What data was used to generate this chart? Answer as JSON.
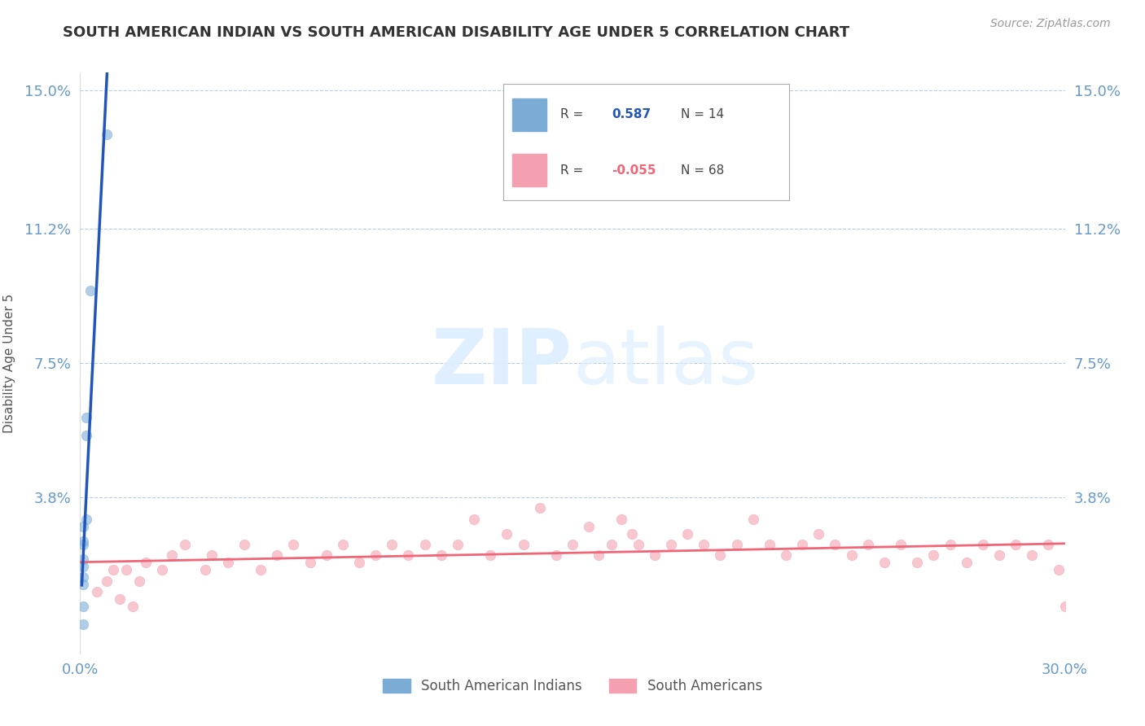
{
  "title": "SOUTH AMERICAN INDIAN VS SOUTH AMERICAN DISABILITY AGE UNDER 5 CORRELATION CHART",
  "source": "Source: ZipAtlas.com",
  "ylabel": "Disability Age Under 5",
  "xlim": [
    0.0,
    0.3
  ],
  "ylim": [
    -0.005,
    0.155
  ],
  "yticks": [
    0.0,
    0.038,
    0.075,
    0.112,
    0.15
  ],
  "ytick_labels": [
    "",
    "3.8%",
    "7.5%",
    "11.2%",
    "15.0%"
  ],
  "xticks": [
    0.0,
    0.3
  ],
  "xtick_labels": [
    "0.0%",
    "30.0%"
  ],
  "legend_label1": "South American Indians",
  "legend_label2": "South Americans",
  "blue_color": "#7aacd6",
  "pink_color": "#f4a0b0",
  "blue_line_color": "#2255bb",
  "pink_line_color": "#ee6677",
  "tick_color": "#6699cc",
  "blue_scatter_x": [
    0.008,
    0.003,
    0.002,
    0.002,
    0.002,
    0.001,
    0.001,
    0.001,
    0.001,
    0.001,
    0.001,
    0.001,
    0.001,
    0.001
  ],
  "blue_scatter_y": [
    0.138,
    0.095,
    0.06,
    0.055,
    0.032,
    0.03,
    0.026,
    0.025,
    0.021,
    0.019,
    0.016,
    0.014,
    0.008,
    0.003
  ],
  "pink_scatter_x": [
    0.005,
    0.008,
    0.01,
    0.012,
    0.014,
    0.016,
    0.018,
    0.02,
    0.025,
    0.028,
    0.032,
    0.038,
    0.04,
    0.045,
    0.05,
    0.055,
    0.06,
    0.065,
    0.07,
    0.075,
    0.08,
    0.085,
    0.09,
    0.095,
    0.1,
    0.105,
    0.11,
    0.115,
    0.12,
    0.125,
    0.13,
    0.135,
    0.14,
    0.145,
    0.15,
    0.155,
    0.158,
    0.162,
    0.165,
    0.168,
    0.17,
    0.175,
    0.18,
    0.185,
    0.19,
    0.195,
    0.2,
    0.205,
    0.21,
    0.215,
    0.22,
    0.225,
    0.23,
    0.235,
    0.24,
    0.245,
    0.25,
    0.255,
    0.26,
    0.265,
    0.27,
    0.275,
    0.28,
    0.285,
    0.29,
    0.295,
    0.298,
    0.3
  ],
  "pink_scatter_y": [
    0.012,
    0.015,
    0.018,
    0.01,
    0.018,
    0.008,
    0.015,
    0.02,
    0.018,
    0.022,
    0.025,
    0.018,
    0.022,
    0.02,
    0.025,
    0.018,
    0.022,
    0.025,
    0.02,
    0.022,
    0.025,
    0.02,
    0.022,
    0.025,
    0.022,
    0.025,
    0.022,
    0.025,
    0.032,
    0.022,
    0.028,
    0.025,
    0.035,
    0.022,
    0.025,
    0.03,
    0.022,
    0.025,
    0.032,
    0.028,
    0.025,
    0.022,
    0.025,
    0.028,
    0.025,
    0.022,
    0.025,
    0.032,
    0.025,
    0.022,
    0.025,
    0.028,
    0.025,
    0.022,
    0.025,
    0.02,
    0.025,
    0.02,
    0.022,
    0.025,
    0.02,
    0.025,
    0.022,
    0.025,
    0.022,
    0.025,
    0.018,
    0.008
  ]
}
